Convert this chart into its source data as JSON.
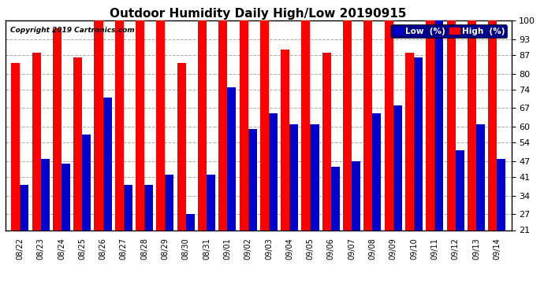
{
  "title": "Outdoor Humidity Daily High/Low 20190915",
  "copyright": "Copyright 2019 Cartronics.com",
  "categories": [
    "08/22",
    "08/23",
    "08/24",
    "08/25",
    "08/26",
    "08/27",
    "08/28",
    "08/29",
    "08/30",
    "08/31",
    "09/01",
    "09/02",
    "09/03",
    "09/04",
    "09/05",
    "09/06",
    "09/07",
    "09/08",
    "09/09",
    "09/10",
    "09/11",
    "09/12",
    "09/13",
    "09/14"
  ],
  "high_values": [
    84,
    88,
    97,
    86,
    100,
    100,
    100,
    100,
    84,
    100,
    100,
    100,
    100,
    89,
    100,
    88,
    100,
    100,
    100,
    88,
    100,
    100,
    100,
    100
  ],
  "low_values": [
    38,
    48,
    46,
    57,
    71,
    38,
    38,
    42,
    27,
    42,
    75,
    59,
    65,
    61,
    61,
    45,
    47,
    65,
    68,
    86,
    100,
    51,
    61,
    48
  ],
  "high_color": "#ff0000",
  "low_color": "#0000cc",
  "ylim": [
    21,
    100
  ],
  "yticks": [
    21,
    27,
    34,
    41,
    47,
    54,
    60,
    67,
    74,
    80,
    87,
    93,
    100
  ],
  "background_color": "#ffffff",
  "grid_color": "#aaaaaa",
  "title_fontsize": 11,
  "bar_width": 0.42,
  "legend_low_label": "Low  (%)",
  "legend_high_label": "High  (%)"
}
